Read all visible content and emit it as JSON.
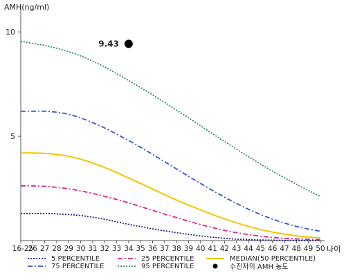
{
  "chart_data": {
    "type": "line",
    "ylabel": "AMH(ng/ml)",
    "xlabel": "나이",
    "y_ticks": [
      5,
      10
    ],
    "ylim": [
      0,
      10.8
    ],
    "categories": [
      "16-25",
      "26",
      "27",
      "28",
      "29",
      "30",
      "31",
      "32",
      "33",
      "34",
      "35",
      "36",
      "37",
      "38",
      "39",
      "40",
      "41",
      "42",
      "43",
      "44",
      "45",
      "46",
      "47",
      "48",
      "49",
      "50"
    ],
    "series": [
      {
        "name": "5 PERCENTILE",
        "color": "#1a1a8c",
        "style": "dotted",
        "values": [
          1.3,
          1.3,
          1.3,
          1.28,
          1.25,
          1.2,
          1.12,
          1.02,
          0.9,
          0.78,
          0.67,
          0.56,
          0.47,
          0.38,
          0.3,
          0.22,
          0.16,
          0.11,
          0.07,
          0.05,
          0.03,
          0.02,
          0.01,
          0.01,
          0.0,
          0.0
        ]
      },
      {
        "name": "25 PERCENTILE",
        "color": "#e0208c",
        "style": "dashdot",
        "values": [
          2.62,
          2.62,
          2.6,
          2.55,
          2.48,
          2.38,
          2.26,
          2.12,
          1.97,
          1.81,
          1.63,
          1.45,
          1.27,
          1.1,
          0.93,
          0.77,
          0.62,
          0.49,
          0.38,
          0.29,
          0.21,
          0.15,
          0.11,
          0.08,
          0.06,
          0.05
        ]
      },
      {
        "name": "MEDIAN(50 PERCENTILE)",
        "color": "#f5c400",
        "style": "solid",
        "values": [
          4.2,
          4.2,
          4.18,
          4.13,
          4.04,
          3.9,
          3.72,
          3.5,
          3.26,
          3.0,
          2.74,
          2.47,
          2.2,
          1.94,
          1.7,
          1.47,
          1.25,
          1.04,
          0.85,
          0.68,
          0.53,
          0.41,
          0.31,
          0.23,
          0.17,
          0.13
        ]
      },
      {
        "name": "75 PERCENTILE",
        "color": "#3355cc",
        "style": "dashdot",
        "values": [
          6.2,
          6.2,
          6.2,
          6.15,
          6.05,
          5.88,
          5.65,
          5.4,
          5.1,
          4.8,
          4.47,
          4.13,
          3.78,
          3.43,
          3.08,
          2.74,
          2.4,
          2.08,
          1.78,
          1.5,
          1.25,
          1.03,
          0.84,
          0.68,
          0.55,
          0.45
        ]
      },
      {
        "name": "95 PERCENTILE",
        "color": "#2e8b57",
        "style": "dotted",
        "values": [
          9.55,
          9.45,
          9.35,
          9.22,
          9.05,
          8.85,
          8.6,
          8.32,
          8.0,
          7.67,
          7.33,
          6.98,
          6.62,
          6.25,
          5.88,
          5.5,
          5.12,
          4.75,
          4.38,
          4.02,
          3.67,
          3.33,
          3.01,
          2.7,
          2.4,
          2.12
        ]
      }
    ],
    "highlight": {
      "name": "수진자의 AMH 농도",
      "category": "34",
      "value": 9.43,
      "label": "9.43",
      "color": "#000000"
    },
    "grid": false,
    "legend_position": "bottom"
  }
}
